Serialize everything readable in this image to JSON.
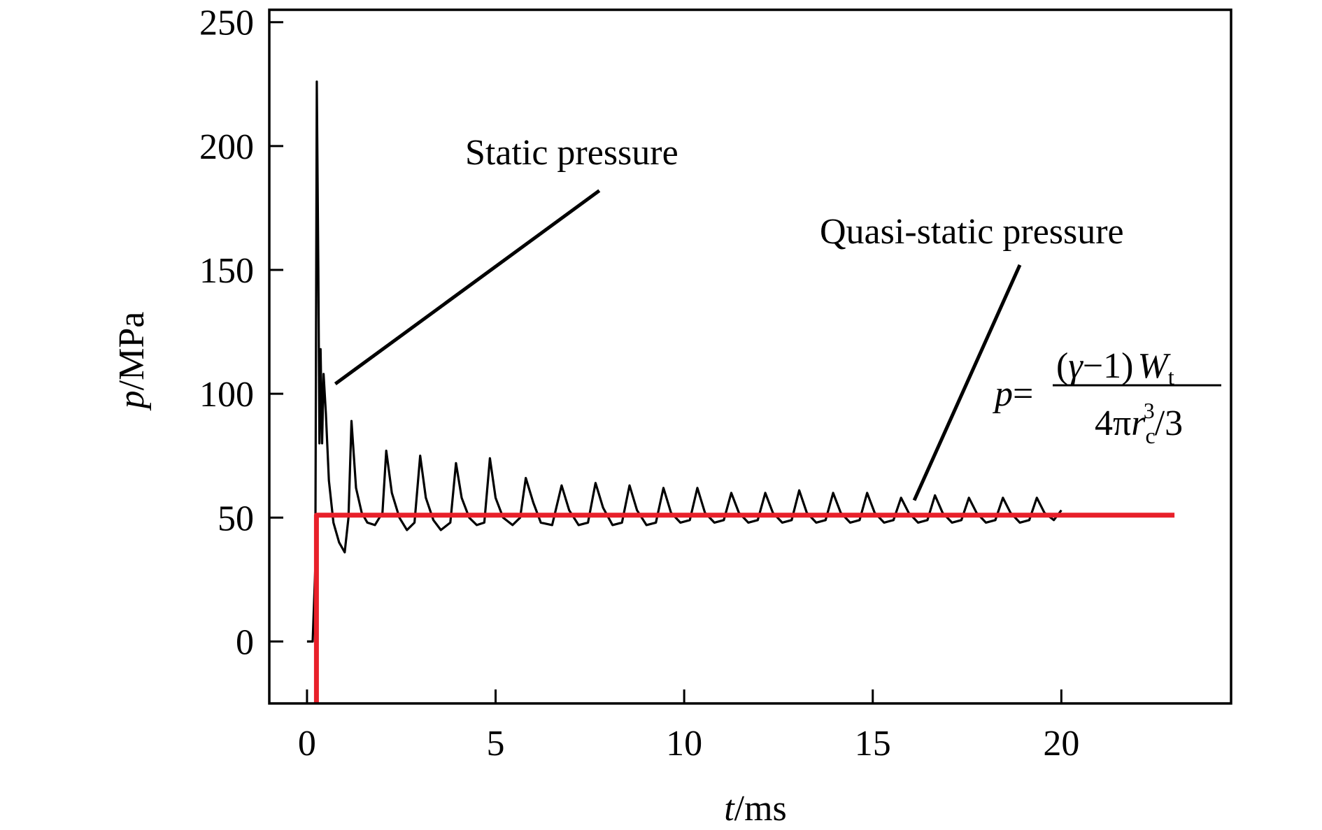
{
  "chart_data": {
    "type": "line",
    "xlabel": {
      "var": "t",
      "unit": "/ms"
    },
    "ylabel": {
      "var": "p",
      "unit": "/MPa"
    },
    "xlim": [
      -1,
      24.5
    ],
    "ylim": [
      -25,
      255
    ],
    "xticks": [
      0,
      5,
      10,
      15,
      20
    ],
    "yticks": [
      0,
      50,
      100,
      150,
      200,
      250
    ],
    "grid": false,
    "annotations": {
      "static": "Static pressure",
      "quasi": "Quasi-static pressure"
    },
    "formula": {
      "lhs": "p",
      "eq": "=",
      "num_open": "(",
      "num_gamma": "γ",
      "num_mid": "−1)",
      "num_W": "W",
      "num_W_sub": "t",
      "den_lead": "4π",
      "den_r": "r",
      "den_r_sub": "c",
      "den_r_sup": "3",
      "den_tail": "/3"
    },
    "series": [
      {
        "color": "#000000",
        "points": [
          [
            0,
            0
          ],
          [
            0.15,
            0
          ],
          [
            0.22,
            30
          ],
          [
            0.26,
            226
          ],
          [
            0.3,
            150
          ],
          [
            0.33,
            80
          ],
          [
            0.36,
            118
          ],
          [
            0.4,
            80
          ],
          [
            0.44,
            108
          ],
          [
            0.5,
            92
          ],
          [
            0.58,
            65
          ],
          [
            0.7,
            48
          ],
          [
            0.85,
            40
          ],
          [
            1.0,
            36
          ],
          [
            1.1,
            50
          ],
          [
            1.18,
            89
          ],
          [
            1.3,
            62
          ],
          [
            1.45,
            52
          ],
          [
            1.6,
            48
          ],
          [
            1.8,
            47
          ],
          [
            2.0,
            52
          ],
          [
            2.1,
            77
          ],
          [
            2.25,
            60
          ],
          [
            2.45,
            50
          ],
          [
            2.65,
            45
          ],
          [
            2.85,
            48
          ],
          [
            3.0,
            75
          ],
          [
            3.15,
            58
          ],
          [
            3.35,
            49
          ],
          [
            3.55,
            45
          ],
          [
            3.8,
            48
          ],
          [
            3.95,
            72
          ],
          [
            4.1,
            58
          ],
          [
            4.3,
            50
          ],
          [
            4.5,
            47
          ],
          [
            4.7,
            48
          ],
          [
            4.85,
            74
          ],
          [
            5.0,
            58
          ],
          [
            5.2,
            50
          ],
          [
            5.45,
            47
          ],
          [
            5.65,
            50
          ],
          [
            5.8,
            66
          ],
          [
            6.0,
            56
          ],
          [
            6.2,
            48
          ],
          [
            6.5,
            47
          ],
          [
            6.75,
            63
          ],
          [
            6.95,
            53
          ],
          [
            7.2,
            47
          ],
          [
            7.45,
            48
          ],
          [
            7.65,
            64
          ],
          [
            7.85,
            54
          ],
          [
            8.1,
            47
          ],
          [
            8.35,
            48
          ],
          [
            8.55,
            63
          ],
          [
            8.75,
            53
          ],
          [
            9.0,
            47
          ],
          [
            9.25,
            48
          ],
          [
            9.45,
            62
          ],
          [
            9.65,
            52
          ],
          [
            9.9,
            48
          ],
          [
            10.15,
            49
          ],
          [
            10.35,
            62
          ],
          [
            10.55,
            52
          ],
          [
            10.8,
            48
          ],
          [
            11.05,
            49
          ],
          [
            11.25,
            60
          ],
          [
            11.45,
            52
          ],
          [
            11.7,
            48
          ],
          [
            11.95,
            49
          ],
          [
            12.15,
            60
          ],
          [
            12.35,
            52
          ],
          [
            12.6,
            48
          ],
          [
            12.85,
            49
          ],
          [
            13.05,
            61
          ],
          [
            13.25,
            52
          ],
          [
            13.5,
            48
          ],
          [
            13.75,
            49
          ],
          [
            13.95,
            60
          ],
          [
            14.15,
            52
          ],
          [
            14.4,
            48
          ],
          [
            14.65,
            49
          ],
          [
            14.85,
            60
          ],
          [
            15.05,
            52
          ],
          [
            15.3,
            48
          ],
          [
            15.55,
            49
          ],
          [
            15.75,
            58
          ],
          [
            15.95,
            52
          ],
          [
            16.2,
            48
          ],
          [
            16.45,
            49
          ],
          [
            16.65,
            59
          ],
          [
            16.85,
            52
          ],
          [
            17.1,
            48
          ],
          [
            17.35,
            49
          ],
          [
            17.55,
            58
          ],
          [
            17.75,
            52
          ],
          [
            18.0,
            48
          ],
          [
            18.25,
            49
          ],
          [
            18.45,
            58
          ],
          [
            18.65,
            52
          ],
          [
            18.9,
            48
          ],
          [
            19.15,
            49
          ],
          [
            19.35,
            58
          ],
          [
            19.55,
            52
          ],
          [
            19.8,
            49
          ],
          [
            20.0,
            53
          ]
        ]
      },
      {
        "color": "#e8202a",
        "points": [
          [
            0.25,
            -25
          ],
          [
            0.25,
            51
          ],
          [
            23.0,
            51
          ]
        ]
      }
    ]
  }
}
